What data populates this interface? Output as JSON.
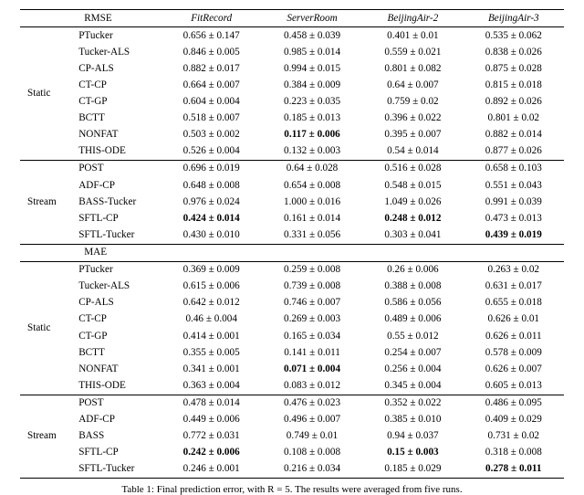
{
  "caption": "Table 1: Final prediction error, with R = 5. The results were averaged from five runs.",
  "colors": {
    "background": "#ffffff",
    "text": "#000000",
    "rule": "#000000"
  },
  "typography": {
    "font_family": "Times New Roman",
    "body_fontsize_pt": 9,
    "caption_fontsize_pt": 9
  },
  "header": {
    "metric_col": "",
    "method_col": "",
    "datasets": [
      "FitRecord",
      "ServerRoom",
      "BeijingAir-2",
      "BeijingAir-3"
    ]
  },
  "sections": [
    {
      "metric": "RMSE",
      "groups": [
        {
          "label": "Static",
          "rows": [
            {
              "method": "PTucker",
              "vals": [
                "0.656 ± 0.147",
                "0.458 ± 0.039",
                "0.401 ± 0.01",
                "0.535 ± 0.062"
              ],
              "bold": [
                false,
                false,
                false,
                false
              ]
            },
            {
              "method": "Tucker-ALS",
              "vals": [
                "0.846 ± 0.005",
                "0.985 ± 0.014",
                "0.559 ± 0.021",
                "0.838 ± 0.026"
              ],
              "bold": [
                false,
                false,
                false,
                false
              ]
            },
            {
              "method": "CP-ALS",
              "vals": [
                "0.882 ± 0.017",
                "0.994 ± 0.015",
                "0.801 ± 0.082",
                "0.875 ± 0.028"
              ],
              "bold": [
                false,
                false,
                false,
                false
              ]
            },
            {
              "method": "CT-CP",
              "vals": [
                "0.664 ± 0.007",
                "0.384 ± 0.009",
                "0.64 ± 0.007",
                "0.815 ± 0.018"
              ],
              "bold": [
                false,
                false,
                false,
                false
              ]
            },
            {
              "method": "CT-GP",
              "vals": [
                "0.604 ± 0.004",
                "0.223 ± 0.035",
                "0.759 ± 0.02",
                "0.892 ± 0.026"
              ],
              "bold": [
                false,
                false,
                false,
                false
              ]
            },
            {
              "method": "BCTT",
              "vals": [
                "0.518 ± 0.007",
                "0.185 ± 0.013",
                "0.396 ± 0.022",
                "0.801 ± 0.02"
              ],
              "bold": [
                false,
                false,
                false,
                false
              ]
            },
            {
              "method": "NONFAT",
              "vals": [
                "0.503 ± 0.002",
                "0.117 ± 0.006",
                "0.395 ± 0.007",
                "0.882 ± 0.014"
              ],
              "bold": [
                false,
                true,
                false,
                false
              ]
            },
            {
              "method": "THIS-ODE",
              "vals": [
                "0.526 ± 0.004",
                "0.132 ± 0.003",
                "0.54 ± 0.014",
                "0.877 ± 0.026"
              ],
              "bold": [
                false,
                false,
                false,
                false
              ]
            }
          ]
        },
        {
          "label": "Stream",
          "rows": [
            {
              "method": "POST",
              "vals": [
                "0.696 ± 0.019",
                "0.64 ± 0.028",
                "0.516 ± 0.028",
                "0.658 ± 0.103"
              ],
              "bold": [
                false,
                false,
                false,
                false
              ]
            },
            {
              "method": "ADF-CP",
              "vals": [
                "0.648 ± 0.008",
                "0.654 ± 0.008",
                "0.548 ± 0.015",
                "0.551 ± 0.043"
              ],
              "bold": [
                false,
                false,
                false,
                false
              ]
            },
            {
              "method": "BASS-Tucker",
              "vals": [
                "0.976 ± 0.024",
                "1.000 ± 0.016",
                "1.049 ± 0.026",
                "0.991 ± 0.039"
              ],
              "bold": [
                false,
                false,
                false,
                false
              ]
            },
            {
              "method": "SFTL-CP",
              "vals": [
                "0.424 ± 0.014",
                "0.161 ± 0.014",
                "0.248 ± 0.012",
                "0.473 ± 0.013"
              ],
              "bold": [
                true,
                false,
                true,
                false
              ]
            },
            {
              "method": "SFTL-Tucker",
              "vals": [
                "0.430 ± 0.010",
                "0.331 ± 0.056",
                "0.303 ± 0.041",
                "0.439 ± 0.019"
              ],
              "bold": [
                false,
                false,
                false,
                true
              ]
            }
          ]
        }
      ]
    },
    {
      "metric": "MAE",
      "groups": [
        {
          "label": "Static",
          "rows": [
            {
              "method": "PTucker",
              "vals": [
                "0.369 ± 0.009",
                "0.259 ± 0.008",
                "0.26 ± 0.006",
                "0.263 ± 0.02"
              ],
              "bold": [
                false,
                false,
                false,
                false
              ]
            },
            {
              "method": "Tucker-ALS",
              "vals": [
                "0.615 ± 0.006",
                "0.739 ± 0.008",
                "0.388 ± 0.008",
                "0.631 ± 0.017"
              ],
              "bold": [
                false,
                false,
                false,
                false
              ]
            },
            {
              "method": "CP-ALS",
              "vals": [
                "0.642 ± 0.012",
                "0.746 ± 0.007",
                "0.586 ± 0.056",
                "0.655 ± 0.018"
              ],
              "bold": [
                false,
                false,
                false,
                false
              ]
            },
            {
              "method": "CT-CP",
              "vals": [
                "0.46 ± 0.004",
                "0.269 ± 0.003",
                "0.489 ± 0.006",
                "0.626 ± 0.01"
              ],
              "bold": [
                false,
                false,
                false,
                false
              ]
            },
            {
              "method": "CT-GP",
              "vals": [
                "0.414 ± 0.001",
                "0.165 ± 0.034",
                "0.55 ± 0.012",
                "0.626 ± 0.011"
              ],
              "bold": [
                false,
                false,
                false,
                false
              ]
            },
            {
              "method": "BCTT",
              "vals": [
                "0.355 ± 0.005",
                "0.141 ± 0.011",
                "0.254 ± 0.007",
                "0.578 ± 0.009"
              ],
              "bold": [
                false,
                false,
                false,
                false
              ]
            },
            {
              "method": "NONFAT",
              "vals": [
                "0.341 ± 0.001",
                "0.071 ± 0.004",
                "0.256 ± 0.004",
                "0.626 ± 0.007"
              ],
              "bold": [
                false,
                true,
                false,
                false
              ]
            },
            {
              "method": "THIS-ODE",
              "vals": [
                "0.363 ± 0.004",
                "0.083 ± 0.012",
                "0.345 ± 0.004",
                "0.605 ± 0.013"
              ],
              "bold": [
                false,
                false,
                false,
                false
              ]
            }
          ]
        },
        {
          "label": "Stream",
          "rows": [
            {
              "method": "POST",
              "vals": [
                "0.478 ± 0.014",
                "0.476 ± 0.023",
                "0.352 ± 0.022",
                "0.486 ± 0.095"
              ],
              "bold": [
                false,
                false,
                false,
                false
              ]
            },
            {
              "method": "ADF-CP",
              "vals": [
                "0.449 ± 0.006",
                "0.496 ± 0.007",
                "0.385 ± 0.010",
                "0.409 ± 0.029"
              ],
              "bold": [
                false,
                false,
                false,
                false
              ]
            },
            {
              "method": "BASS",
              "vals": [
                "0.772 ± 0.031",
                "0.749 ± 0.01",
                "0.94 ± 0.037",
                "0.731 ± 0.02"
              ],
              "bold": [
                false,
                false,
                false,
                false
              ]
            },
            {
              "method": "SFTL-CP",
              "vals": [
                "0.242 ± 0.006",
                "0.108 ± 0.008",
                "0.15 ± 0.003",
                "0.318 ± 0.008"
              ],
              "bold": [
                true,
                false,
                true,
                false
              ]
            },
            {
              "method": "SFTL-Tucker",
              "vals": [
                "0.246 ± 0.001",
                "0.216 ± 0.034",
                "0.185 ± 0.029",
                "0.278 ± 0.011"
              ],
              "bold": [
                false,
                false,
                false,
                true
              ]
            }
          ]
        }
      ]
    }
  ]
}
